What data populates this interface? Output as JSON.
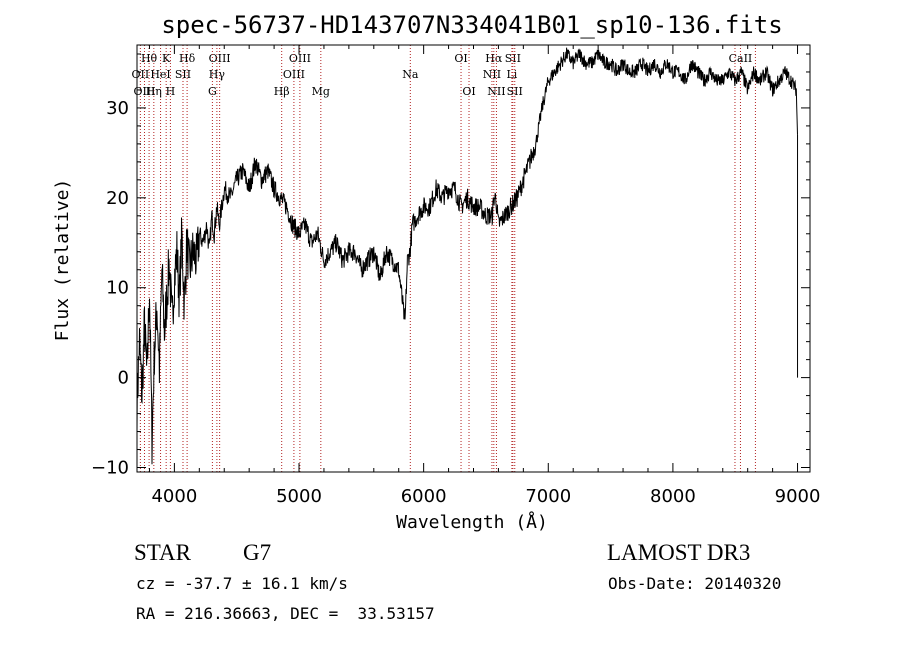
{
  "chart_data": {
    "type": "line",
    "title": "spec-56737-HD143707N334041B01_sp10-136.fits",
    "xlabel": "Wavelength (Å)",
    "ylabel": "Flux (relative)",
    "xlim": [
      3700,
      9100
    ],
    "ylim": [
      -10.5,
      37
    ],
    "xticks": [
      4000,
      5000,
      6000,
      7000,
      8000,
      9000
    ],
    "yticks": [
      -10,
      0,
      10,
      20,
      30
    ],
    "series": [
      {
        "name": "spectrum",
        "x": [
          3700,
          3720,
          3740,
          3760,
          3780,
          3800,
          3820,
          3840,
          3860,
          3880,
          3900,
          3920,
          3940,
          3960,
          3980,
          4000,
          4020,
          4040,
          4060,
          4080,
          4100,
          4120,
          4150,
          4180,
          4200,
          4230,
          4260,
          4280,
          4300,
          4320,
          4340,
          4360,
          4400,
          4450,
          4500,
          4550,
          4600,
          4650,
          4700,
          4750,
          4800,
          4850,
          4900,
          4950,
          5000,
          5050,
          5100,
          5150,
          5200,
          5250,
          5300,
          5350,
          5400,
          5450,
          5500,
          5550,
          5600,
          5650,
          5700,
          5750,
          5800,
          5850,
          5870,
          5890,
          5910,
          5950,
          6000,
          6050,
          6100,
          6150,
          6200,
          6250,
          6300,
          6350,
          6400,
          6450,
          6500,
          6550,
          6565,
          6580,
          6600,
          6650,
          6700,
          6750,
          6800,
          6850,
          6900,
          6950,
          7000,
          7050,
          7100,
          7150,
          7200,
          7250,
          7300,
          7350,
          7400,
          7450,
          7500,
          7550,
          7600,
          7650,
          7700,
          7750,
          7800,
          7850,
          7900,
          7950,
          8000,
          8050,
          8100,
          8150,
          8200,
          8250,
          8300,
          8350,
          8400,
          8450,
          8500,
          8550,
          8600,
          8650,
          8700,
          8750,
          8800,
          8850,
          8900,
          8950,
          8990,
          9000
        ],
        "y": [
          -3,
          4,
          -2,
          6,
          0,
          10,
          -7,
          3,
          8,
          1,
          12,
          5,
          9,
          13,
          6,
          11,
          14,
          9,
          16,
          8,
          15,
          12,
          14,
          13,
          16,
          15,
          17,
          14,
          18,
          16,
          19,
          17,
          21,
          20,
          22,
          23,
          21,
          24,
          22,
          23,
          21,
          20,
          19,
          17,
          16,
          17,
          15,
          16,
          13,
          14,
          15,
          13,
          14,
          14,
          12,
          13,
          14,
          11,
          14,
          13,
          12,
          6,
          13,
          14,
          17,
          18,
          19,
          19,
          21,
          20,
          21,
          21,
          19,
          20,
          19,
          19,
          18,
          18,
          20,
          20,
          17,
          18,
          19,
          20,
          22,
          24,
          26,
          30,
          33,
          34,
          35,
          36,
          35,
          36,
          35,
          35,
          36,
          35,
          35,
          34,
          35,
          34,
          34,
          35,
          34,
          35,
          34,
          35,
          34,
          34,
          33,
          35,
          34,
          33,
          34,
          33,
          33,
          34,
          33,
          34,
          32,
          34,
          33,
          34,
          32,
          33,
          34,
          33,
          32,
          27
        ]
      }
    ],
    "lines": [
      {
        "label": "Hθ",
        "x": 3797,
        "row": 1
      },
      {
        "label": "OII",
        "x": 3727,
        "row": 2
      },
      {
        "label": "OIII",
        "x": 3760,
        "row": 3
      },
      {
        "label": "K",
        "x": 3934,
        "row": 1
      },
      {
        "label": "HeI",
        "x": 3889,
        "row": 2
      },
      {
        "label": "Hη",
        "x": 3835,
        "row": 3
      },
      {
        "label": "H",
        "x": 3968,
        "row": 3
      },
      {
        "label": "Hδ",
        "x": 4102,
        "row": 1
      },
      {
        "label": "SII",
        "x": 4069,
        "row": 2
      },
      {
        "label": "OIII",
        "x": 4363,
        "row": 1
      },
      {
        "label": "Hγ",
        "x": 4341,
        "row": 2
      },
      {
        "label": "G",
        "x": 4305,
        "row": 3
      },
      {
        "label": "Hβ",
        "x": 4861,
        "row": 3
      },
      {
        "label": "OIII",
        "x": 5007,
        "row": 1
      },
      {
        "label": "OIII",
        "x": 4959,
        "row": 2
      },
      {
        "label": "Mg",
        "x": 5175,
        "row": 3
      },
      {
        "label": "Na",
        "x": 5893,
        "row": 2
      },
      {
        "label": "OI",
        "x": 6300,
        "row": 1
      },
      {
        "label": "OI",
        "x": 6364,
        "row": 3
      },
      {
        "label": "Hα",
        "x": 6563,
        "row": 1
      },
      {
        "label": "SII",
        "x": 6716,
        "row": 1
      },
      {
        "label": "NII",
        "x": 6548,
        "row": 2
      },
      {
        "label": "Li",
        "x": 6708,
        "row": 2
      },
      {
        "label": "NII",
        "x": 6584,
        "row": 3
      },
      {
        "label": "SII",
        "x": 6731,
        "row": 3
      },
      {
        "label": "CaII",
        "x": 8542,
        "row": 1
      },
      {
        "label": "",
        "x": 8498,
        "row": 0
      },
      {
        "label": "",
        "x": 8662,
        "row": 0
      }
    ],
    "line_color": "#b22222",
    "grid": false
  },
  "info": {
    "star": "STAR",
    "class": "G7",
    "survey": "LAMOST DR3",
    "cz": "cz = -37.7 ± 16.1 km/s",
    "obs_date": "Obs-Date: 20140320",
    "radec": "RA = 216.36663, DEC =  33.53157"
  }
}
